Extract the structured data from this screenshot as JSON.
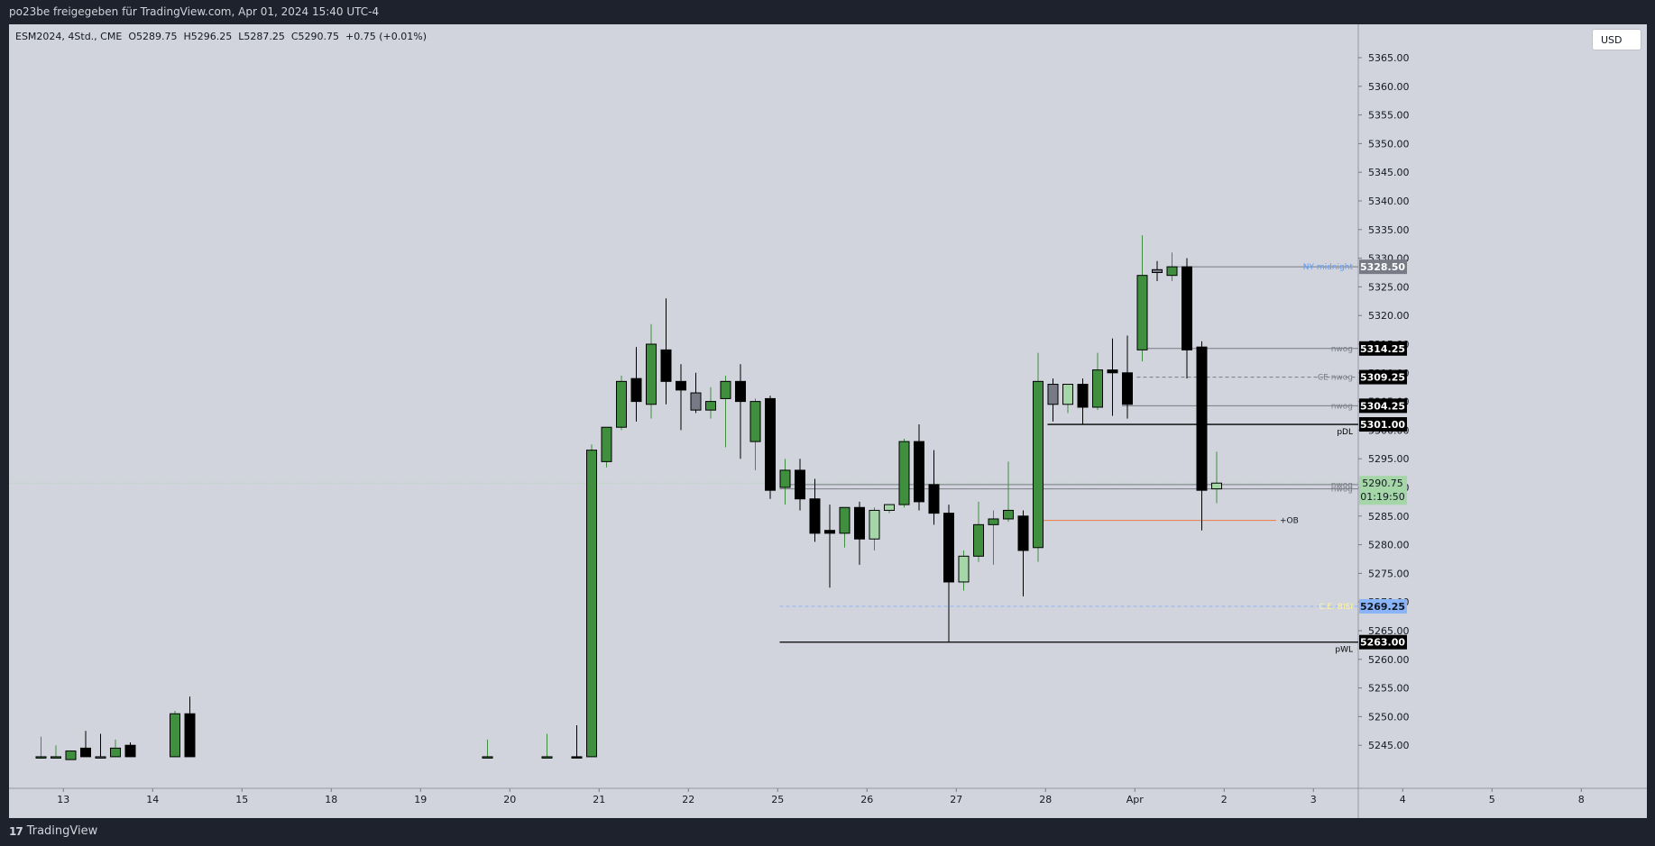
{
  "header": {
    "title": "po23be freigegeben für TradingView.com, Apr 01, 2024 15:40 UTC-4"
  },
  "legend": {
    "symbol": "ESM2024, 4Std., CME",
    "open": "O5289.75",
    "high": "H5296.25",
    "low": "L5287.25",
    "close": "C5290.75",
    "change": "+0.75 (+0.01%)"
  },
  "currency": "USD",
  "footer": {
    "brand": "TradingView",
    "logo": "17"
  },
  "colors": {
    "bull": "#3f8f3f",
    "bull_light": "#a5d6a7",
    "bear": "#000000",
    "neutral": "#787b86",
    "ob_line": "#ef7b45",
    "ce_bisi": "#8ab4f8",
    "ny_label": "#5b9cf6",
    "chart_bg": "#d1d4dc"
  },
  "chart_data": {
    "type": "candlestick",
    "title": "",
    "ylim": [
      5241,
      5370
    ],
    "y_ticks": [
      "5245.00",
      "5250.00",
      "5255.00",
      "5260.00",
      "5265.00",
      "5270.00",
      "5275.00",
      "5280.00",
      "5285.00",
      "5290.00",
      "5295.00",
      "5300.00",
      "5305.00",
      "5310.00",
      "5315.00",
      "5320.00",
      "5325.00",
      "5330.00",
      "5335.00",
      "5340.00",
      "5345.00",
      "5350.00",
      "5355.00",
      "5360.00",
      "5365.00"
    ],
    "x_labels": [
      {
        "label": "13",
        "i": 1.5
      },
      {
        "label": "14",
        "i": 7.5
      },
      {
        "label": "15",
        "i": 13.5
      },
      {
        "label": "18",
        "i": 19.5
      },
      {
        "label": "19",
        "i": 25.5
      },
      {
        "label": "20",
        "i": 31.5
      },
      {
        "label": "21",
        "i": 37.5
      },
      {
        "label": "22",
        "i": 43.5
      },
      {
        "label": "25",
        "i": 49.5
      },
      {
        "label": "26",
        "i": 55.5
      },
      {
        "label": "27",
        "i": 61.5
      },
      {
        "label": "28",
        "i": 67.5
      },
      {
        "label": "Apr",
        "i": 73.5
      },
      {
        "label": "2",
        "i": 79.5
      },
      {
        "label": "3",
        "i": 85.5
      },
      {
        "label": "4",
        "i": 91.5
      },
      {
        "label": "5",
        "i": 97.5
      },
      {
        "label": "8",
        "i": 103.5
      }
    ],
    "candles": [
      {
        "i": 0,
        "o": 5243.0,
        "h": 5246.5,
        "l": 5243.0,
        "c": 5243.0,
        "s": "bull"
      },
      {
        "i": 1,
        "o": 5243.0,
        "h": 5245.0,
        "l": 5243.0,
        "c": 5243.0,
        "s": "bull"
      },
      {
        "i": 2,
        "o": 5242.5,
        "h": 5244.0,
        "l": 5242.5,
        "c": 5244.0,
        "s": "bull"
      },
      {
        "i": 3,
        "o": 5244.5,
        "h": 5247.5,
        "l": 5243.0,
        "c": 5243.0,
        "s": "bear"
      },
      {
        "i": 4,
        "o": 5243.0,
        "h": 5247.0,
        "l": 5243.0,
        "c": 5243.0,
        "s": "neutral"
      },
      {
        "i": 5,
        "o": 5243.0,
        "h": 5246.0,
        "l": 5243.0,
        "c": 5244.5,
        "s": "bull"
      },
      {
        "i": 6,
        "o": 5245.0,
        "h": 5245.5,
        "l": 5243.0,
        "c": 5243.0,
        "s": "bear"
      },
      {
        "i": 9,
        "o": 5243.0,
        "h": 5251.0,
        "l": 5243.0,
        "c": 5250.5,
        "s": "bull"
      },
      {
        "i": 10,
        "o": 5250.5,
        "h": 5253.5,
        "l": 5243.0,
        "c": 5243.0,
        "s": "bear"
      },
      {
        "i": 30,
        "o": 5243.0,
        "h": 5246.0,
        "l": 5243.0,
        "c": 5243.0,
        "s": "bull"
      },
      {
        "i": 34,
        "o": 5243.0,
        "h": 5247.0,
        "l": 5243.0,
        "c": 5243.0,
        "s": "bull"
      },
      {
        "i": 36,
        "o": 5243.0,
        "h": 5248.5,
        "l": 5243.0,
        "c": 5243.0,
        "s": "bear"
      },
      {
        "i": 37,
        "o": 5243.0,
        "h": 5297.5,
        "l": 5243.0,
        "c": 5296.5,
        "s": "bull"
      },
      {
        "i": 38,
        "o": 5294.5,
        "h": 5299.5,
        "l": 5293.5,
        "c": 5300.5,
        "s": "bull"
      },
      {
        "i": 39,
        "o": 5300.5,
        "h": 5309.5,
        "l": 5300.0,
        "c": 5308.5,
        "s": "bull"
      },
      {
        "i": 40,
        "o": 5309.0,
        "h": 5314.5,
        "l": 5301.5,
        "c": 5305.0,
        "s": "bear"
      },
      {
        "i": 41,
        "o": 5304.5,
        "h": 5318.5,
        "l": 5302.0,
        "c": 5315.0,
        "s": "bull"
      },
      {
        "i": 42,
        "o": 5314.0,
        "h": 5323.0,
        "l": 5304.5,
        "c": 5308.5,
        "s": "bear"
      },
      {
        "i": 43,
        "o": 5308.5,
        "h": 5311.5,
        "l": 5300.0,
        "c": 5307.0,
        "s": "bear"
      },
      {
        "i": 44,
        "o": 5303.5,
        "h": 5310.0,
        "l": 5303.0,
        "c": 5306.5,
        "s": "neutral"
      },
      {
        "i": 45,
        "o": 5303.5,
        "h": 5307.5,
        "l": 5302.0,
        "c": 5305.0,
        "s": "bull"
      },
      {
        "i": 46,
        "o": 5305.5,
        "h": 5309.5,
        "l": 5297.0,
        "c": 5308.5,
        "s": "bull"
      },
      {
        "i": 47,
        "o": 5308.5,
        "h": 5311.5,
        "l": 5295.0,
        "c": 5305.0,
        "s": "bear"
      },
      {
        "i": 48,
        "o": 5298.0,
        "h": 5305.5,
        "l": 5293.0,
        "c": 5305.0,
        "s": "bull"
      },
      {
        "i": 49,
        "o": 5305.5,
        "h": 5306.0,
        "l": 5288.0,
        "c": 5289.5,
        "s": "bear"
      },
      {
        "i": 50,
        "o": 5290.0,
        "h": 5295.0,
        "l": 5287.0,
        "c": 5293.0,
        "s": "bull"
      },
      {
        "i": 51,
        "o": 5293.0,
        "h": 5295.0,
        "l": 5286.0,
        "c": 5288.0,
        "s": "bear"
      },
      {
        "i": 52,
        "o": 5288.0,
        "h": 5291.5,
        "l": 5280.5,
        "c": 5282.0,
        "s": "bear"
      },
      {
        "i": 53,
        "o": 5282.5,
        "h": 5287.0,
        "l": 5272.5,
        "c": 5282.0,
        "s": "bear"
      },
      {
        "i": 54,
        "o": 5282.0,
        "h": 5286.5,
        "l": 5279.5,
        "c": 5286.5,
        "s": "bull"
      },
      {
        "i": 55,
        "o": 5286.5,
        "h": 5287.5,
        "l": 5276.5,
        "c": 5281.0,
        "s": "bear"
      },
      {
        "i": 56,
        "o": 5281.0,
        "h": 5286.5,
        "l": 5279.0,
        "c": 5286.0,
        "s": "bull_light"
      },
      {
        "i": 57,
        "o": 5286.0,
        "h": 5286.5,
        "l": 5285.5,
        "c": 5287.0,
        "s": "bull_light"
      },
      {
        "i": 58,
        "o": 5287.0,
        "h": 5298.5,
        "l": 5286.5,
        "c": 5298.0,
        "s": "bull"
      },
      {
        "i": 59,
        "o": 5298.0,
        "h": 5301.0,
        "l": 5286.0,
        "c": 5287.5,
        "s": "bear"
      },
      {
        "i": 60,
        "o": 5290.5,
        "h": 5296.5,
        "l": 5283.5,
        "c": 5285.5,
        "s": "bear"
      },
      {
        "i": 61,
        "o": 5285.5,
        "h": 5287.0,
        "l": 5263.0,
        "c": 5273.5,
        "s": "bear"
      },
      {
        "i": 62,
        "o": 5273.5,
        "h": 5279.0,
        "l": 5272.0,
        "c": 5278.0,
        "s": "bull_light"
      },
      {
        "i": 63,
        "o": 5278.0,
        "h": 5287.5,
        "l": 5277.0,
        "c": 5283.5,
        "s": "bull"
      },
      {
        "i": 64,
        "o": 5283.5,
        "h": 5286.0,
        "l": 5276.5,
        "c": 5284.5,
        "s": "bull"
      },
      {
        "i": 65,
        "o": 5284.5,
        "h": 5294.5,
        "l": 5284.0,
        "c": 5286.0,
        "s": "bull"
      },
      {
        "i": 66,
        "o": 5285.0,
        "h": 5286.0,
        "l": 5271.0,
        "c": 5279.0,
        "s": "bear"
      },
      {
        "i": 67,
        "o": 5279.5,
        "h": 5313.5,
        "l": 5277.0,
        "c": 5308.5,
        "s": "bull"
      },
      {
        "i": 68,
        "o": 5308.0,
        "h": 5309.0,
        "l": 5301.5,
        "c": 5304.5,
        "s": "neutral"
      },
      {
        "i": 69,
        "o": 5304.5,
        "h": 5308.0,
        "l": 5303.0,
        "c": 5308.0,
        "s": "bull_light"
      },
      {
        "i": 70,
        "o": 5308.0,
        "h": 5309.0,
        "l": 5301.0,
        "c": 5304.0,
        "s": "bear"
      },
      {
        "i": 71,
        "o": 5304.0,
        "h": 5313.5,
        "l": 5303.5,
        "c": 5310.5,
        "s": "bull"
      },
      {
        "i": 72,
        "o": 5310.0,
        "h": 5316.0,
        "l": 5302.5,
        "c": 5310.5,
        "s": "bear"
      },
      {
        "i": 73,
        "o": 5310.0,
        "h": 5316.5,
        "l": 5302.0,
        "c": 5304.5,
        "s": "bear"
      },
      {
        "i": 74,
        "o": 5314.0,
        "h": 5334.0,
        "l": 5312.0,
        "c": 5327.0,
        "s": "bull"
      },
      {
        "i": 75,
        "o": 5327.5,
        "h": 5329.5,
        "l": 5326.0,
        "c": 5328.0,
        "s": "neutral"
      },
      {
        "i": 76,
        "o": 5327.0,
        "h": 5331.0,
        "l": 5326.0,
        "c": 5328.5,
        "s": "bull"
      },
      {
        "i": 77,
        "o": 5328.5,
        "h": 5330.0,
        "l": 5309.0,
        "c": 5314.0,
        "s": "bear"
      },
      {
        "i": 78,
        "o": 5314.5,
        "h": 5315.5,
        "l": 5282.5,
        "c": 5289.5,
        "s": "bear"
      },
      {
        "i": 79,
        "o": 5289.75,
        "h": 5296.25,
        "l": 5287.25,
        "c": 5290.75,
        "s": "bull_light"
      }
    ],
    "levels": [
      {
        "name": "NY midnight",
        "price": 5328.5,
        "from": 76,
        "color": "#787b86",
        "dash": false,
        "label_color": "#5b9cf6",
        "badge": "5328.50",
        "badge_bg": "#787b86",
        "badge_fg": "#ffffff"
      },
      {
        "name": "nwog",
        "price": 5314.25,
        "from": 74,
        "color": "#787b86",
        "dash": false,
        "label_color": "#787b86",
        "badge": "5314.25",
        "badge_bg": "#000000",
        "badge_fg": "#ffffff"
      },
      {
        "name": "CE nwog",
        "price": 5309.25,
        "from": 74,
        "color": "#787b86",
        "dash": true,
        "label_color": "#787b86",
        "badge": "5309.25",
        "badge_bg": "#000000",
        "badge_fg": "#ffffff"
      },
      {
        "name": "nwog",
        "price": 5304.25,
        "from": 73,
        "color": "#787b86",
        "dash": false,
        "label_color": "#787b86",
        "badge": "5304.25",
        "badge_bg": "#000000",
        "badge_fg": "#ffffff"
      },
      {
        "name": "pDL",
        "price": 5301.0,
        "from": 68,
        "color": "#000000",
        "dash": false,
        "label_color": "#000000",
        "badge": "5301.00",
        "badge_bg": "#000000",
        "badge_fg": "#ffffff"
      },
      {
        "name": "nwog",
        "price": 5290.5,
        "from": 50,
        "color": "#787b86",
        "dash": false,
        "label_color": "#787b86",
        "badge": "5290.50",
        "badge_bg": "#000000",
        "badge_fg": "#ffffff"
      },
      {
        "name": "nwog",
        "price": 5289.75,
        "from": 50,
        "color": "#787b86",
        "dash": false,
        "label_color": "#787b86",
        "badge": "5289.75",
        "badge_bg": "#000000",
        "badge_fg": "#ffffff"
      },
      {
        "name": "C.E. BISI",
        "price": 5269.25,
        "from": 50,
        "color": "#8ab4f8",
        "dash": true,
        "label_color": "#fff59d",
        "badge": "5269.25",
        "badge_bg": "#8ab4f8",
        "badge_fg": "#131722"
      },
      {
        "name": "pWL",
        "price": 5263.0,
        "from": 50,
        "color": "#000000",
        "dash": false,
        "label_color": "#000000",
        "badge": "5263.00",
        "badge_bg": "#000000",
        "badge_fg": "#ffffff"
      }
    ],
    "ob": {
      "name": "+OB",
      "price": 5284.25,
      "from": 67,
      "to": 83
    },
    "current": {
      "price": "5290.75",
      "countdown": "01:19:50",
      "value": 5290.75,
      "badge_bg": "#a5d6a7"
    }
  }
}
